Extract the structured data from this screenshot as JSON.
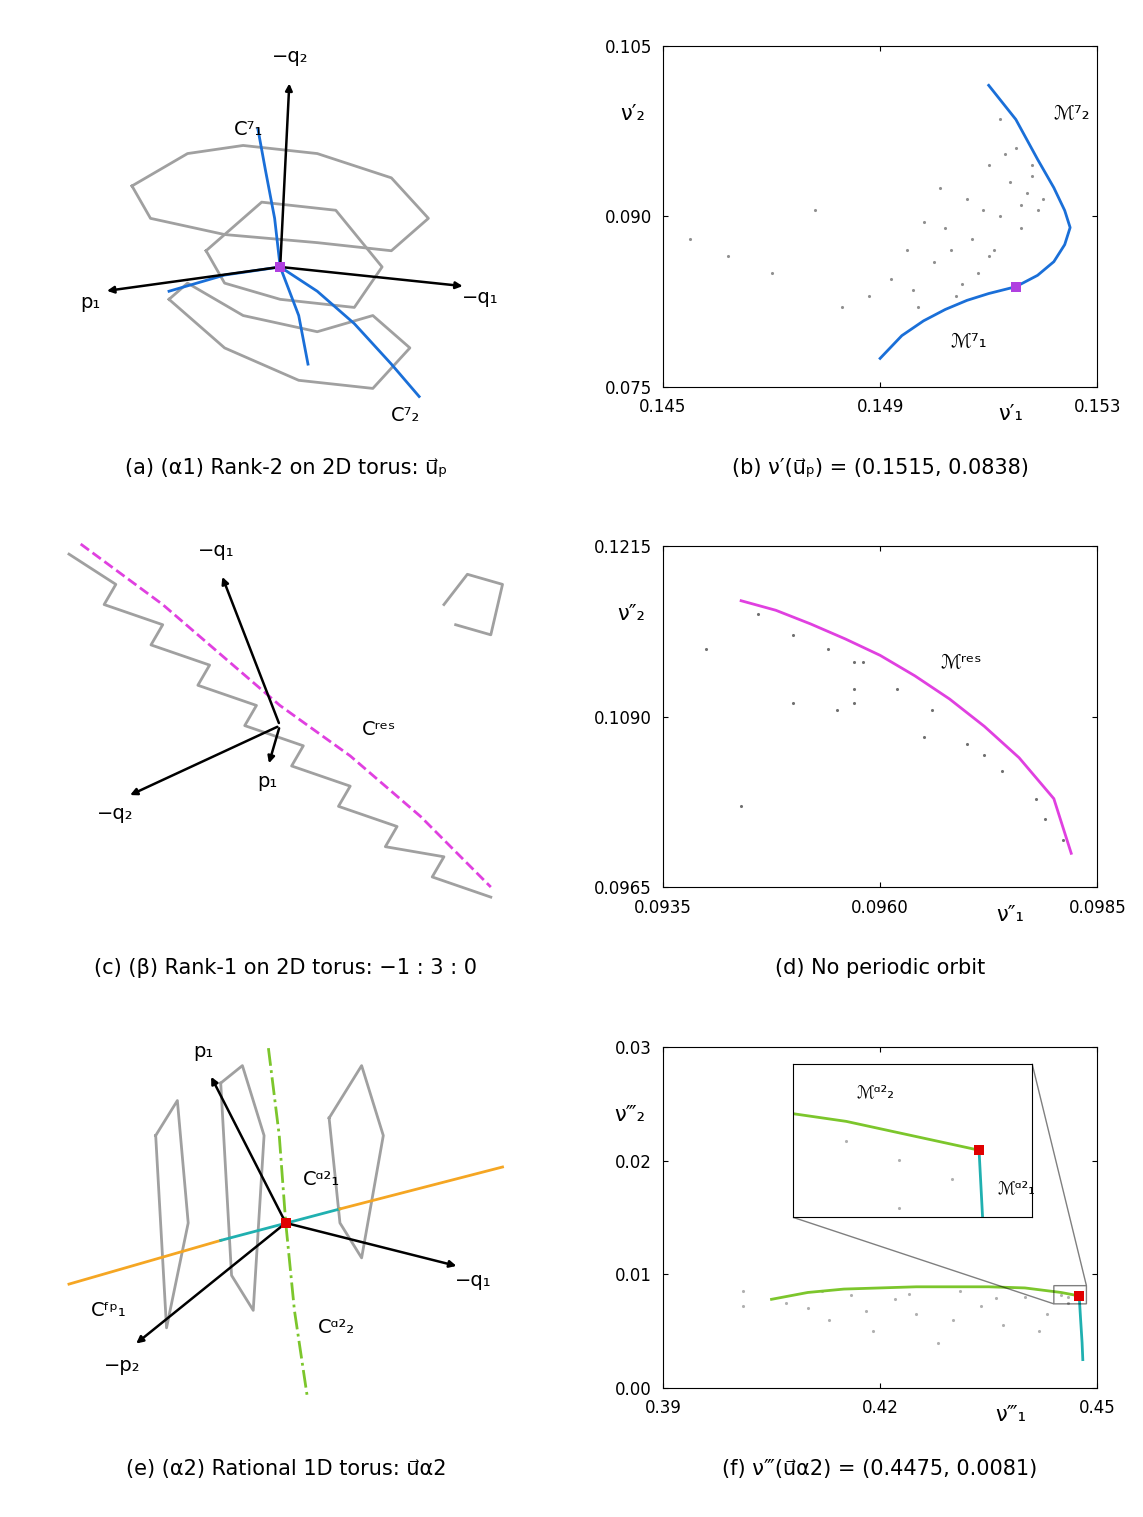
{
  "chart_data": [
    {
      "type": "line",
      "tick_labels": false,
      "caption": "(a) (α1) Rank-2 on 2D torus: u⃗ₚ",
      "axis_arrows": [
        "−q₂",
        "p₁",
        "−q₁"
      ],
      "series": [
        {
          "type": "line",
          "color": "#a0a0a0",
          "line_style": "solid",
          "x": [
            -0.8,
            -0.5,
            -0.2,
            0.2,
            0.6,
            0.8,
            0.6,
            0.2,
            -0.3,
            -0.7,
            -0.8
          ],
          "values": [
            0.5,
            0.7,
            0.75,
            0.7,
            0.55,
            0.3,
            0.1,
            0.15,
            0.2,
            0.3,
            0.5
          ]
        },
        {
          "type": "line",
          "color": "#a0a0a0",
          "line_style": "solid",
          "x": [
            -0.6,
            -0.3,
            0.1,
            0.5,
            0.7,
            0.5,
            0.2,
            -0.2,
            -0.5,
            -0.6
          ],
          "values": [
            -0.2,
            -0.5,
            -0.7,
            -0.75,
            -0.5,
            -0.3,
            -0.4,
            -0.3,
            -0.1,
            -0.2
          ]
        },
        {
          "type": "line",
          "color": "#a0a0a0",
          "line_style": "solid",
          "x": [
            -0.4,
            -0.1,
            0.3,
            0.55,
            0.4,
            0.0,
            -0.3,
            -0.4
          ],
          "values": [
            0.1,
            0.4,
            0.35,
            0.0,
            -0.25,
            -0.2,
            -0.1,
            0.1
          ]
        },
        {
          "type": "line",
          "color": "#1a6fd8",
          "line_style": "solid",
          "x": [
            0.0,
            -0.03,
            -0.08,
            -0.12
          ],
          "values": [
            0.0,
            0.3,
            0.6,
            0.85
          ]
        },
        {
          "type": "line",
          "color": "#1a6fd8",
          "line_style": "solid",
          "x": [
            0.0,
            0.2,
            0.4,
            0.6,
            0.75
          ],
          "values": [
            0.0,
            -0.15,
            -0.35,
            -0.6,
            -0.8
          ]
        },
        {
          "type": "line",
          "color": "#1a6fd8",
          "line_style": "solid",
          "x": [
            0.0,
            -0.3,
            -0.6
          ],
          "values": [
            0.0,
            -0.05,
            -0.15
          ]
        },
        {
          "type": "line",
          "color": "#1a6fd8",
          "line_style": "solid",
          "x": [
            0.0,
            0.1,
            0.15
          ],
          "values": [
            0.0,
            -0.3,
            -0.6
          ]
        },
        {
          "type": "scatter",
          "color": "#b040e0",
          "marker": "s",
          "x": [
            0.0
          ],
          "values": [
            0.0
          ]
        }
      ],
      "annotations": [
        {
          "text": "C⁷₁",
          "x": -0.25,
          "y": 0.85
        },
        {
          "text": "C⁷₂",
          "x": 0.6,
          "y": -0.92
        }
      ]
    },
    {
      "type": "scatter",
      "caption": "(b) ν′(u⃗ₚ) = (0.1515, 0.0838)",
      "xlabel": "ν′₁",
      "ylabel": "ν′₂",
      "xlim": [
        0.145,
        0.153
      ],
      "ylim": [
        0.075,
        0.105
      ],
      "xticks": [
        0.145,
        0.149,
        0.153
      ],
      "yticks": [
        0.075,
        {
          "value": 0.09,
          "label": "0.090"
        },
        0.105
      ],
      "series": [
        {
          "type": "scatter",
          "color": "#909090",
          "marker": "o",
          "x": [
            0.1455,
            0.1462,
            0.147,
            0.1478,
            0.1483,
            0.1488,
            0.1492,
            0.1495,
            0.1497,
            0.15,
            0.1502,
            0.1504,
            0.1506,
            0.1508,
            0.151,
            0.1511,
            0.1512,
            0.1514,
            0.1515,
            0.1516,
            0.1517,
            0.1518,
            0.1519,
            0.152,
            0.1498,
            0.1503,
            0.1507,
            0.1509,
            0.1513,
            0.1505,
            0.1501,
            0.1496,
            0.151,
            0.1512,
            0.1516,
            0.1518
          ],
          "values": [
            0.088,
            0.0865,
            0.085,
            0.0905,
            0.082,
            0.083,
            0.0845,
            0.087,
            0.082,
            0.086,
            0.089,
            0.083,
            0.0915,
            0.085,
            0.0945,
            0.087,
            0.09,
            0.093,
            0.096,
            0.089,
            0.092,
            0.0945,
            0.0905,
            0.0915,
            0.0895,
            0.087,
            0.088,
            0.0905,
            0.0955,
            0.084,
            0.0925,
            0.0835,
            0.0865,
            0.0985,
            0.091,
            0.0935
          ]
        },
        {
          "type": "line",
          "color": "#1a6fd8",
          "line_style": "solid",
          "x": [
            0.149,
            0.1494,
            0.1498,
            0.1502,
            0.1506,
            0.151,
            0.1515
          ],
          "values": [
            0.0775,
            0.0795,
            0.0808,
            0.0818,
            0.0826,
            0.0832,
            0.0838
          ]
        },
        {
          "type": "line",
          "color": "#1a6fd8",
          "line_style": "solid",
          "x": [
            0.1515,
            0.1519,
            0.1522,
            0.1524,
            0.1525,
            0.1524,
            0.1522,
            0.1519,
            0.1515,
            0.151
          ],
          "values": [
            0.0838,
            0.0848,
            0.086,
            0.0875,
            0.089,
            0.0905,
            0.0925,
            0.095,
            0.0985,
            0.1015
          ]
        },
        {
          "type": "scatter",
          "color": "#b040e0",
          "marker": "s",
          "x": [
            0.1515
          ],
          "values": [
            0.0838
          ]
        }
      ],
      "annotations": [
        {
          "text": "ℳ⁷₂",
          "x": 0.1522,
          "y": 0.099
        },
        {
          "text": "ℳ⁷₁",
          "x": 0.1503,
          "y": 0.079
        }
      ]
    },
    {
      "type": "line",
      "tick_labels": false,
      "caption": "(c) (β) Rank-1 on 2D torus: −1 : 3 : 0",
      "axis_arrows": [
        "−q₁",
        "−q₂",
        "p₁"
      ],
      "series": [
        {
          "type": "line",
          "color": "#a0a0a0",
          "line_style": "solid",
          "x": [
            -0.9,
            -0.7,
            -0.75,
            -0.5,
            -0.55,
            -0.3,
            -0.35,
            -0.1,
            -0.15,
            0.1,
            0.05,
            0.3,
            0.25,
            0.5,
            0.45,
            0.7,
            0.65,
            0.9
          ],
          "values": [
            0.85,
            0.7,
            0.6,
            0.5,
            0.4,
            0.3,
            0.2,
            0.1,
            0.0,
            -0.1,
            -0.2,
            -0.3,
            -0.4,
            -0.5,
            -0.6,
            -0.65,
            -0.75,
            -0.85
          ]
        },
        {
          "type": "line",
          "color": "#a0a0a0",
          "line_style": "solid",
          "x": [
            0.7,
            0.8,
            0.95,
            0.9,
            0.75
          ],
          "values": [
            0.6,
            0.75,
            0.7,
            0.45,
            0.5
          ]
        },
        {
          "type": "line",
          "color": "#e040e0",
          "line_style": "dashed",
          "x": [
            -0.85,
            -0.5,
            -0.2,
            0.0,
            0.3,
            0.6,
            0.9
          ],
          "values": [
            0.9,
            0.6,
            0.3,
            0.1,
            -0.15,
            -0.45,
            -0.8
          ]
        }
      ],
      "annotations": [
        {
          "text": "Cʳᵉˢ",
          "x": 0.35,
          "y": -0.02
        }
      ]
    },
    {
      "type": "scatter",
      "caption": "(d) No periodic orbit",
      "xlabel": "ν″₁",
      "ylabel": "ν″₂",
      "xlim": [
        0.0935,
        0.0985
      ],
      "ylim": [
        0.0965,
        0.1215
      ],
      "xticks": [
        0.0935,
        {
          "value": 0.096,
          "label": "0.0960"
        },
        0.0985
      ],
      "yticks": [
        0.0965,
        {
          "value": 0.109,
          "label": "0.1090"
        },
        0.1215
      ],
      "series": [
        {
          "type": "scatter",
          "color": "#707070",
          "marker": "o",
          "x": [
            0.0946,
            0.095,
            0.0954,
            0.0958,
            0.0962,
            0.0966,
            0.097,
            0.0974,
            0.0978,
            0.0981,
            0.095,
            0.0955,
            0.0965,
            0.0972,
            0.0979,
            0.094,
            0.0944,
            0.0957,
            0.0957,
            0.0957
          ],
          "values": [
            0.1165,
            0.115,
            0.114,
            0.113,
            0.111,
            0.1095,
            0.107,
            0.105,
            0.103,
            0.1,
            0.11,
            0.1095,
            0.1075,
            0.1062,
            0.1015,
            0.114,
            0.1025,
            0.111,
            0.113,
            0.11
          ]
        },
        {
          "type": "line",
          "color": "#e040e0",
          "line_style": "solid",
          "x": [
            0.0944,
            0.0948,
            0.0952,
            0.0956,
            0.096,
            0.0964,
            0.0968,
            0.0972,
            0.0976,
            0.098,
            0.0982
          ],
          "values": [
            0.1175,
            0.1168,
            0.1158,
            0.1147,
            0.1135,
            0.112,
            0.1103,
            0.1083,
            0.106,
            0.103,
            0.099
          ]
        }
      ],
      "annotations": [
        {
          "text": "ℳʳᵉˢ",
          "x": 0.0967,
          "y": 0.113
        }
      ]
    },
    {
      "type": "line",
      "tick_labels": false,
      "caption": "(e) (α2) Rational 1D torus: u⃗α2",
      "axis_arrows": [
        "p₁",
        "−q₁",
        "−p₂"
      ],
      "series": [
        {
          "type": "line",
          "color": "#a0a0a0",
          "line_style": "solid",
          "x": [
            -0.3,
            -0.2,
            -0.1,
            -0.15,
            -0.25,
            -0.3
          ],
          "values": [
            0.8,
            0.9,
            0.5,
            -0.5,
            -0.3,
            0.8
          ]
        },
        {
          "type": "line",
          "color": "#a0a0a0",
          "line_style": "solid",
          "x": [
            0.2,
            0.35,
            0.45,
            0.35,
            0.25,
            0.2
          ],
          "values": [
            0.6,
            0.9,
            0.5,
            -0.2,
            0.0,
            0.6
          ]
        },
        {
          "type": "line",
          "color": "#a0a0a0",
          "line_style": "solid",
          "x": [
            -0.6,
            -0.5,
            -0.45,
            -0.55,
            -0.6
          ],
          "values": [
            0.5,
            0.7,
            0.0,
            -0.6,
            0.5
          ]
        },
        {
          "type": "line",
          "color": "#f5a623",
          "line_style": "solid",
          "x": [
            -1.0,
            -0.3
          ],
          "values": [
            -0.35,
            -0.1
          ]
        },
        {
          "type": "line",
          "color": "#20b0b0",
          "line_style": "solid",
          "x": [
            -0.3,
            0.25
          ],
          "values": [
            -0.1,
            0.08
          ]
        },
        {
          "type": "line",
          "color": "#f5a623",
          "line_style": "solid",
          "x": [
            0.25,
            1.0
          ],
          "values": [
            0.08,
            0.32
          ]
        },
        {
          "type": "line",
          "color": "#7cc62c",
          "line_style": "dashdot",
          "x": [
            -0.08,
            -0.03,
            0.0,
            0.04,
            0.1
          ],
          "values": [
            1.0,
            0.5,
            0.0,
            -0.5,
            -1.0
          ]
        },
        {
          "type": "scatter",
          "color": "#e00000",
          "marker": "s",
          "x": [
            0.0
          ],
          "values": [
            0.0
          ]
        }
      ],
      "annotations": [
        {
          "text": "Cᵅ²₁",
          "x": 0.08,
          "y": 0.25
        },
        {
          "text": "Cᵅ²₂",
          "x": 0.15,
          "y": -0.6
        },
        {
          "text": "Cᶠᵖ₁",
          "x": -0.9,
          "y": -0.5
        }
      ]
    },
    {
      "type": "scatter",
      "caption": "(f) ν‴(u⃗α2) = (0.4475, 0.0081)",
      "xlabel": "ν‴₁",
      "ylabel": "ν‴₂",
      "xlim": [
        0.39,
        0.45
      ],
      "ylim": [
        0.0,
        0.03
      ],
      "xticks": [
        0.39,
        0.42,
        0.45
      ],
      "yticks": [
        {
          "value": 0.0,
          "label": "0.00"
        },
        0.01,
        0.02,
        0.03
      ],
      "series": [
        {
          "type": "scatter",
          "color": "#b0b0b0",
          "marker": "o",
          "x": [
            0.407,
            0.41,
            0.413,
            0.416,
            0.419,
            0.422,
            0.425,
            0.428,
            0.431,
            0.434,
            0.437,
            0.44,
            0.443,
            0.446,
            0.412,
            0.418,
            0.424,
            0.43,
            0.436,
            0.442,
            0.401,
            0.401,
            0.446,
            0.447,
            0.445
          ],
          "values": [
            0.0075,
            0.007,
            0.006,
            0.0082,
            0.005,
            0.0078,
            0.0065,
            0.004,
            0.0085,
            0.0072,
            0.0055,
            0.008,
            0.0065,
            0.0075,
            0.0085,
            0.0068,
            0.0083,
            0.006,
            0.0079,
            0.005,
            0.0072,
            0.0085,
            0.008,
            0.0078,
            0.0082
          ]
        },
        {
          "type": "line",
          "color": "#7cc62c",
          "line_style": "solid",
          "x": [
            0.405,
            0.41,
            0.415,
            0.42,
            0.425,
            0.43,
            0.435,
            0.44,
            0.445,
            0.4475
          ],
          "values": [
            0.0078,
            0.0084,
            0.0087,
            0.0088,
            0.0089,
            0.0089,
            0.0089,
            0.0088,
            0.0084,
            0.0081
          ]
        },
        {
          "type": "line",
          "color": "#20b0b0",
          "line_style": "solid",
          "x": [
            0.4475,
            0.4477,
            0.4479,
            0.448
          ],
          "values": [
            0.0081,
            0.006,
            0.004,
            0.0025
          ]
        },
        {
          "type": "scatter",
          "color": "#e00000",
          "marker": "s",
          "x": [
            0.4475
          ],
          "values": [
            0.0081
          ]
        }
      ],
      "annotations": [],
      "inset": {
        "xlim": [
          0.444,
          0.4485
        ],
        "ylim": [
          0.0074,
          0.009
        ],
        "tick_labels": false,
        "annotations": [
          {
            "text": "ℳᵅ²₂",
            "x": 0.4452,
            "y": 0.0087
          },
          {
            "text": "ℳᵅ²₁",
            "x": 0.44785,
            "y": 0.0077
          }
        ]
      }
    }
  ]
}
